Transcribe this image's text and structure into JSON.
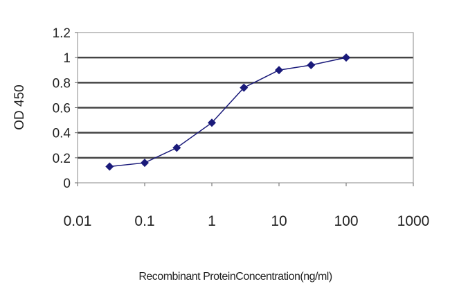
{
  "chart_data": {
    "type": "line",
    "title": "",
    "xlabel": "Recombinant ProteinConcentration(ng/ml)",
    "ylabel": "OD 450",
    "x_scale": "log",
    "xlim": [
      0.01,
      1000
    ],
    "ylim": [
      0,
      1.2
    ],
    "x_ticks": [
      "0.01",
      "0.1",
      "1",
      "10",
      "100",
      "1000"
    ],
    "x_tick_values": [
      0.01,
      0.1,
      1,
      10,
      100,
      1000
    ],
    "y_ticks": [
      "0",
      "0.2",
      "0.4",
      "0.6",
      "0.8",
      "1",
      "1.2"
    ],
    "y_tick_values": [
      0,
      0.2,
      0.4,
      0.6,
      0.8,
      1,
      1.2
    ],
    "grid": "horizontal",
    "series": [
      {
        "x": [
          0.03,
          0.1,
          0.3,
          1,
          3,
          10,
          30,
          100
        ],
        "y": [
          0.13,
          0.16,
          0.28,
          0.48,
          0.76,
          0.9,
          0.94,
          1.0
        ],
        "color": "#1a1a7a",
        "marker": "diamond"
      }
    ]
  }
}
